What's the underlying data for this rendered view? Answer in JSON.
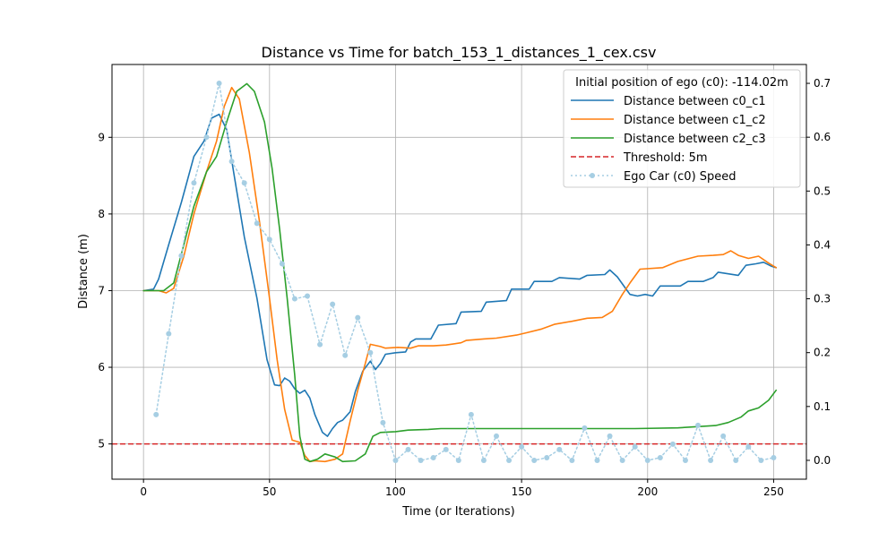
{
  "chart_data": {
    "type": "line",
    "title": "Distance vs Time for batch_153_1_distances_1_cex.csv",
    "xlabel": "Time (or Iterations)",
    "ylabel": "Distance (m)",
    "y2label": "",
    "xlim": [
      -12.5,
      263
    ],
    "ylim": [
      4.54,
      9.95
    ],
    "y2lim": [
      -0.035,
      0.735
    ],
    "xticks": [
      0,
      50,
      100,
      150,
      200,
      250
    ],
    "yticks": [
      5,
      6,
      7,
      8,
      9
    ],
    "y2ticks": [
      0.0,
      0.1,
      0.2,
      0.3,
      0.4,
      0.5,
      0.6,
      0.7
    ],
    "grid": true,
    "legend": {
      "title": "Initial position of ego (c0): -114.02m",
      "position": "top-right"
    },
    "threshold": {
      "name": "Threshold: 5m",
      "value": 5,
      "color": "#d62728"
    },
    "series": [
      {
        "name": "Distance between c0_c1",
        "color": "#1f77b4",
        "axis": "left",
        "points": [
          [
            0,
            7.0
          ],
          [
            4,
            7.02
          ],
          [
            6,
            7.15
          ],
          [
            10,
            7.6
          ],
          [
            15,
            8.15
          ],
          [
            20,
            8.75
          ],
          [
            24,
            8.95
          ],
          [
            27,
            9.25
          ],
          [
            30,
            9.3
          ],
          [
            33,
            9.1
          ],
          [
            36,
            8.5
          ],
          [
            40,
            7.7
          ],
          [
            45,
            6.9
          ],
          [
            49,
            6.1
          ],
          [
            52,
            5.77
          ],
          [
            54,
            5.76
          ],
          [
            56,
            5.86
          ],
          [
            58,
            5.82
          ],
          [
            60,
            5.72
          ],
          [
            62,
            5.66
          ],
          [
            64,
            5.7
          ],
          [
            66,
            5.6
          ],
          [
            68,
            5.38
          ],
          [
            71,
            5.15
          ],
          [
            73,
            5.1
          ],
          [
            75,
            5.2
          ],
          [
            77,
            5.28
          ],
          [
            79,
            5.31
          ],
          [
            82,
            5.42
          ],
          [
            84,
            5.68
          ],
          [
            87,
            5.95
          ],
          [
            90,
            6.08
          ],
          [
            92,
            5.97
          ],
          [
            94,
            6.05
          ],
          [
            96,
            6.17
          ],
          [
            100,
            6.19
          ],
          [
            104,
            6.2
          ],
          [
            106,
            6.33
          ],
          [
            108,
            6.37
          ],
          [
            114,
            6.37
          ],
          [
            117,
            6.55
          ],
          [
            124,
            6.57
          ],
          [
            126,
            6.72
          ],
          [
            134,
            6.73
          ],
          [
            136,
            6.85
          ],
          [
            144,
            6.87
          ],
          [
            146,
            7.02
          ],
          [
            153,
            7.02
          ],
          [
            155,
            7.12
          ],
          [
            162,
            7.12
          ],
          [
            165,
            7.17
          ],
          [
            173,
            7.15
          ],
          [
            176,
            7.2
          ],
          [
            183,
            7.21
          ],
          [
            185,
            7.27
          ],
          [
            188,
            7.18
          ],
          [
            191,
            7.04
          ],
          [
            193,
            6.95
          ],
          [
            196,
            6.93
          ],
          [
            199,
            6.95
          ],
          [
            202,
            6.93
          ],
          [
            205,
            7.06
          ],
          [
            213,
            7.06
          ],
          [
            216,
            7.12
          ],
          [
            222,
            7.12
          ],
          [
            226,
            7.17
          ],
          [
            228,
            7.24
          ],
          [
            236,
            7.2
          ],
          [
            239,
            7.33
          ],
          [
            243,
            7.35
          ],
          [
            246,
            7.37
          ],
          [
            249,
            7.32
          ],
          [
            251,
            7.3
          ]
        ]
      },
      {
        "name": "Distance between c1_c2",
        "color": "#ff7f0e",
        "axis": "left",
        "points": [
          [
            0,
            7.0
          ],
          [
            6,
            7.0
          ],
          [
            9,
            6.97
          ],
          [
            12,
            7.03
          ],
          [
            16,
            7.45
          ],
          [
            20,
            8.0
          ],
          [
            25,
            8.55
          ],
          [
            29,
            8.95
          ],
          [
            32,
            9.4
          ],
          [
            35,
            9.65
          ],
          [
            38,
            9.5
          ],
          [
            42,
            8.8
          ],
          [
            46,
            7.9
          ],
          [
            50,
            6.9
          ],
          [
            53,
            6.1
          ],
          [
            56,
            5.45
          ],
          [
            59,
            5.05
          ],
          [
            62,
            5.02
          ],
          [
            64,
            4.85
          ],
          [
            66,
            4.77
          ],
          [
            68,
            4.78
          ],
          [
            72,
            4.77
          ],
          [
            76,
            4.8
          ],
          [
            79,
            4.87
          ],
          [
            82,
            5.3
          ],
          [
            85,
            5.7
          ],
          [
            88,
            6.05
          ],
          [
            90,
            6.3
          ],
          [
            94,
            6.27
          ],
          [
            96,
            6.25
          ],
          [
            101,
            6.26
          ],
          [
            106,
            6.25
          ],
          [
            109,
            6.28
          ],
          [
            115,
            6.28
          ],
          [
            120,
            6.29
          ],
          [
            126,
            6.32
          ],
          [
            128,
            6.35
          ],
          [
            135,
            6.37
          ],
          [
            140,
            6.38
          ],
          [
            148,
            6.42
          ],
          [
            152,
            6.45
          ],
          [
            158,
            6.5
          ],
          [
            163,
            6.56
          ],
          [
            170,
            6.6
          ],
          [
            176,
            6.64
          ],
          [
            182,
            6.65
          ],
          [
            186,
            6.73
          ],
          [
            190,
            6.95
          ],
          [
            193,
            7.1
          ],
          [
            197,
            7.28
          ],
          [
            206,
            7.3
          ],
          [
            212,
            7.38
          ],
          [
            220,
            7.45
          ],
          [
            226,
            7.46
          ],
          [
            230,
            7.47
          ],
          [
            233,
            7.52
          ],
          [
            236,
            7.46
          ],
          [
            240,
            7.42
          ],
          [
            244,
            7.45
          ],
          [
            248,
            7.36
          ],
          [
            251,
            7.3
          ]
        ]
      },
      {
        "name": "Distance between c2_c3",
        "color": "#2ca02c",
        "axis": "left",
        "points": [
          [
            0,
            7.0
          ],
          [
            8,
            7.0
          ],
          [
            12,
            7.1
          ],
          [
            16,
            7.6
          ],
          [
            20,
            8.1
          ],
          [
            25,
            8.55
          ],
          [
            29,
            8.75
          ],
          [
            33,
            9.2
          ],
          [
            37,
            9.6
          ],
          [
            41,
            9.7
          ],
          [
            44,
            9.6
          ],
          [
            48,
            9.2
          ],
          [
            51,
            8.6
          ],
          [
            54,
            7.8
          ],
          [
            57,
            6.9
          ],
          [
            60,
            5.9
          ],
          [
            62,
            5.1
          ],
          [
            64,
            4.8
          ],
          [
            66,
            4.77
          ],
          [
            69,
            4.8
          ],
          [
            72,
            4.87
          ],
          [
            76,
            4.83
          ],
          [
            79,
            4.77
          ],
          [
            84,
            4.78
          ],
          [
            88,
            4.87
          ],
          [
            91,
            5.1
          ],
          [
            94,
            5.15
          ],
          [
            100,
            5.16
          ],
          [
            105,
            5.18
          ],
          [
            113,
            5.19
          ],
          [
            118,
            5.2
          ],
          [
            140,
            5.2
          ],
          [
            170,
            5.2
          ],
          [
            195,
            5.2
          ],
          [
            212,
            5.21
          ],
          [
            222,
            5.23
          ],
          [
            227,
            5.24
          ],
          [
            232,
            5.28
          ],
          [
            237,
            5.35
          ],
          [
            240,
            5.43
          ],
          [
            244,
            5.47
          ],
          [
            248,
            5.57
          ],
          [
            251,
            5.7
          ]
        ]
      },
      {
        "name": "Ego Car (c0) Speed",
        "color": "#a6cee3",
        "axis": "right",
        "points": [
          [
            5,
            0.085
          ],
          [
            10,
            0.235
          ],
          [
            15,
            0.38
          ],
          [
            20,
            0.515
          ],
          [
            25,
            0.6
          ],
          [
            30,
            0.7
          ],
          [
            35,
            0.555
          ],
          [
            40,
            0.515
          ],
          [
            45,
            0.44
          ],
          [
            50,
            0.41
          ],
          [
            55,
            0.365
          ],
          [
            60,
            0.3
          ],
          [
            65,
            0.305
          ],
          [
            70,
            0.215
          ],
          [
            75,
            0.29
          ],
          [
            80,
            0.195
          ],
          [
            85,
            0.265
          ],
          [
            90,
            0.2
          ],
          [
            95,
            0.07
          ],
          [
            100,
            0.0
          ],
          [
            105,
            0.02
          ],
          [
            110,
            0.0
          ],
          [
            115,
            0.005
          ],
          [
            120,
            0.02
          ],
          [
            125,
            0.0
          ],
          [
            130,
            0.085
          ],
          [
            135,
            0.0
          ],
          [
            140,
            0.045
          ],
          [
            145,
            0.0
          ],
          [
            150,
            0.025
          ],
          [
            155,
            0.0
          ],
          [
            160,
            0.005
          ],
          [
            165,
            0.02
          ],
          [
            170,
            0.0
          ],
          [
            175,
            0.06
          ],
          [
            180,
            0.0
          ],
          [
            185,
            0.045
          ],
          [
            190,
            0.0
          ],
          [
            195,
            0.025
          ],
          [
            200,
            0.0
          ],
          [
            205,
            0.005
          ],
          [
            210,
            0.03
          ],
          [
            215,
            0.0
          ],
          [
            220,
            0.065
          ],
          [
            225,
            0.0
          ],
          [
            230,
            0.045
          ],
          [
            235,
            0.0
          ],
          [
            240,
            0.025
          ],
          [
            245,
            0.0
          ],
          [
            250,
            0.005
          ]
        ]
      }
    ]
  }
}
